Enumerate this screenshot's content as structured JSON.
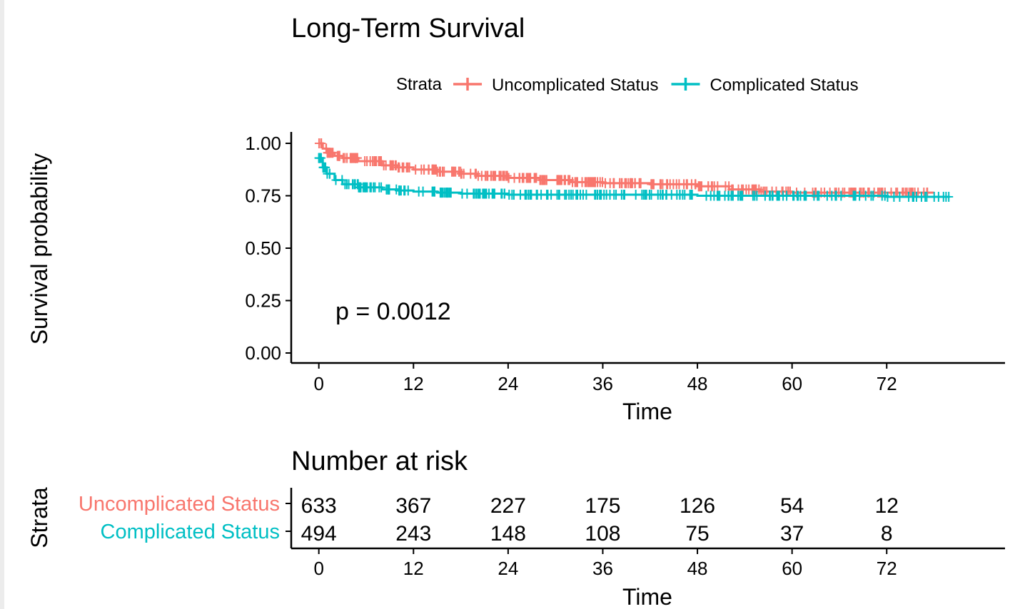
{
  "chart_data": [
    {
      "type": "line",
      "title": "Long-Term Survival",
      "xlabel": "Time",
      "ylabel": "Survival probability",
      "xlim": [
        -3.5,
        87
      ],
      "ylim": [
        0,
        1
      ],
      "x_ticks": [
        "0",
        "12",
        "24",
        "36",
        "48",
        "60",
        "72"
      ],
      "y_ticks": [
        "0.00",
        "0.25",
        "0.50",
        "0.75",
        "1.00"
      ],
      "grid": false,
      "legend": {
        "position": "top",
        "title": "Strata",
        "entries": [
          "Uncomplicated Status",
          "Complicated Status"
        ]
      },
      "annotation": "p = 0.0012",
      "series": [
        {
          "name": "Uncomplicated Status",
          "color": "#F8766D",
          "points": [
            [
              0,
              1.0
            ],
            [
              0.5,
              0.975
            ],
            [
              1,
              0.955
            ],
            [
              2,
              0.94
            ],
            [
              3,
              0.93
            ],
            [
              5,
              0.915
            ],
            [
              8,
              0.895
            ],
            [
              10,
              0.885
            ],
            [
              12,
              0.875
            ],
            [
              15,
              0.865
            ],
            [
              18,
              0.855
            ],
            [
              20,
              0.845
            ],
            [
              24,
              0.835
            ],
            [
              28,
              0.825
            ],
            [
              32,
              0.815
            ],
            [
              36,
              0.81
            ],
            [
              42,
              0.805
            ],
            [
              48,
              0.795
            ],
            [
              52,
              0.78
            ],
            [
              56,
              0.77
            ],
            [
              60,
              0.765
            ],
            [
              66,
              0.765
            ],
            [
              72,
              0.765
            ],
            [
              78,
              0.765
            ]
          ]
        },
        {
          "name": "Complicated Status",
          "color": "#00BFC4",
          "points": [
            [
              0,
              0.93
            ],
            [
              0.5,
              0.885
            ],
            [
              1,
              0.855
            ],
            [
              2,
              0.825
            ],
            [
              3,
              0.805
            ],
            [
              5,
              0.79
            ],
            [
              8,
              0.78
            ],
            [
              10,
              0.775
            ],
            [
              12,
              0.77
            ],
            [
              15,
              0.765
            ],
            [
              18,
              0.76
            ],
            [
              24,
              0.755
            ],
            [
              36,
              0.755
            ],
            [
              42,
              0.755
            ],
            [
              48,
              0.75
            ],
            [
              60,
              0.75
            ],
            [
              72,
              0.745
            ],
            [
              80,
              0.745
            ]
          ]
        }
      ]
    },
    {
      "type": "table",
      "title": "Number at risk",
      "xlabel": "Time",
      "ylabel": "Strata",
      "x_ticks": [
        "0",
        "12",
        "24",
        "36",
        "48",
        "60",
        "72"
      ],
      "rows": [
        {
          "name": "Uncomplicated Status",
          "color": "#F8766D",
          "values": [
            "633",
            "367",
            "227",
            "175",
            "126",
            "54",
            "12"
          ]
        },
        {
          "name": "Complicated Status",
          "color": "#00BFC4",
          "values": [
            "494",
            "243",
            "148",
            "108",
            "75",
            "37",
            "8"
          ]
        }
      ]
    }
  ]
}
